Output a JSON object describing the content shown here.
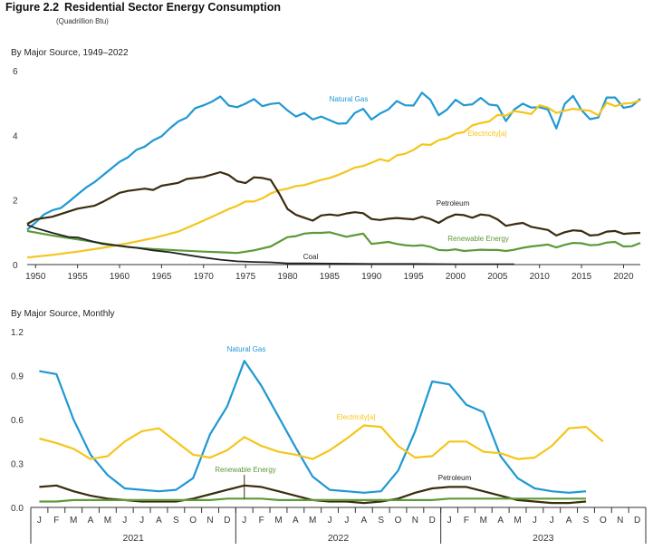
{
  "figure": {
    "number": "Figure 2.2",
    "title": "Residential Sector Energy Consumption",
    "subtitle": "(Quadrillion Btu)"
  },
  "colors": {
    "natural_gas": "#1f98d2",
    "electricity": "#f5c51b",
    "petroleum": "#3b2c0f",
    "renewable": "#5c9a37",
    "coal": "#222222",
    "axis": "#333333"
  },
  "chart_data": [
    {
      "type": "line",
      "title": "By Major Source, 1949–2022",
      "xlim": [
        1949,
        2022
      ],
      "ylim": [
        0,
        6
      ],
      "yticks": [
        0,
        2,
        4,
        6
      ],
      "xticks": [
        1950,
        1955,
        1960,
        1965,
        1970,
        1975,
        1980,
        1985,
        1990,
        1995,
        2000,
        2005,
        2010,
        2015,
        2020
      ],
      "series": [
        {
          "name": "Natural Gas",
          "x": [
            1949,
            1950,
            1951,
            1952,
            1953,
            1954,
            1955,
            1956,
            1957,
            1958,
            1959,
            1960,
            1961,
            1962,
            1963,
            1964,
            1965,
            1966,
            1967,
            1968,
            1969,
            1970,
            1971,
            1972,
            1973,
            1974,
            1975,
            1976,
            1977,
            1978,
            1979,
            1980,
            1981,
            1982,
            1983,
            1984,
            1985,
            1986,
            1987,
            1988,
            1989,
            1990,
            1991,
            1992,
            1993,
            1994,
            1995,
            1996,
            1997,
            1998,
            1999,
            2000,
            2001,
            2002,
            2003,
            2004,
            2005,
            2006,
            2007,
            2008,
            2009,
            2010,
            2011,
            2012,
            2013,
            2014,
            2015,
            2016,
            2017,
            2018,
            2019,
            2020,
            2021,
            2022
          ],
          "y": [
            1.08,
            1.3,
            1.55,
            1.68,
            1.75,
            1.95,
            2.17,
            2.38,
            2.55,
            2.76,
            2.97,
            3.18,
            3.32,
            3.55,
            3.65,
            3.84,
            3.97,
            4.22,
            4.43,
            4.55,
            4.84,
            4.93,
            5.04,
            5.2,
            4.92,
            4.87,
            4.98,
            5.12,
            4.9,
            4.97,
            5.0,
            4.77,
            4.58,
            4.69,
            4.49,
            4.58,
            4.47,
            4.36,
            4.37,
            4.69,
            4.82,
            4.49,
            4.67,
            4.8,
            5.06,
            4.93,
            4.92,
            5.32,
            5.1,
            4.62,
            4.8,
            5.1,
            4.93,
            4.96,
            5.16,
            4.95,
            4.92,
            4.44,
            4.8,
            4.98,
            4.86,
            4.87,
            4.8,
            4.21,
            4.97,
            5.22,
            4.78,
            4.5,
            4.55,
            5.17,
            5.17,
            4.85,
            4.9,
            5.13
          ]
        },
        {
          "name": "Electricity[a]",
          "x": [
            1949,
            1952,
            1955,
            1958,
            1961,
            1964,
            1967,
            1970,
            1973,
            1974,
            1975,
            1976,
            1977,
            1978,
            1979,
            1980,
            1981,
            1982,
            1983,
            1984,
            1985,
            1986,
            1987,
            1988,
            1989,
            1990,
            1991,
            1992,
            1993,
            1994,
            1995,
            1996,
            1997,
            1998,
            1999,
            2000,
            2001,
            2002,
            2003,
            2004,
            2005,
            2006,
            2007,
            2008,
            2009,
            2010,
            2011,
            2012,
            2013,
            2014,
            2015,
            2016,
            2017,
            2018,
            2019,
            2020,
            2021,
            2022
          ],
          "y": [
            0.22,
            0.3,
            0.4,
            0.52,
            0.66,
            0.82,
            1.02,
            1.36,
            1.72,
            1.82,
            1.95,
            1.95,
            2.05,
            2.2,
            2.3,
            2.35,
            2.43,
            2.46,
            2.54,
            2.62,
            2.68,
            2.77,
            2.88,
            3.0,
            3.05,
            3.15,
            3.26,
            3.2,
            3.38,
            3.43,
            3.55,
            3.72,
            3.7,
            3.85,
            3.91,
            4.05,
            4.1,
            4.31,
            4.38,
            4.43,
            4.63,
            4.61,
            4.75,
            4.71,
            4.66,
            4.93,
            4.86,
            4.69,
            4.76,
            4.82,
            4.79,
            4.76,
            4.62,
            5.01,
            4.9,
            4.98,
            5.0,
            5.08
          ]
        },
        {
          "name": "Petroleum",
          "x": [
            1949,
            1950,
            1952,
            1955,
            1957,
            1958,
            1960,
            1961,
            1963,
            1964,
            1965,
            1967,
            1968,
            1970,
            1972,
            1973,
            1974,
            1975,
            1976,
            1977,
            1978,
            1979,
            1980,
            1981,
            1982,
            1983,
            1984,
            1985,
            1986,
            1987,
            1988,
            1989,
            1990,
            1991,
            1992,
            1993,
            1994,
            1995,
            1996,
            1997,
            1998,
            1999,
            2000,
            2001,
            2002,
            2003,
            2004,
            2005,
            2006,
            2007,
            2008,
            2009,
            2010,
            2011,
            2012,
            2013,
            2014,
            2015,
            2016,
            2017,
            2018,
            2019,
            2020,
            2021,
            2022
          ],
          "y": [
            1.26,
            1.4,
            1.48,
            1.73,
            1.82,
            1.94,
            2.22,
            2.28,
            2.35,
            2.31,
            2.44,
            2.53,
            2.65,
            2.71,
            2.86,
            2.77,
            2.58,
            2.52,
            2.7,
            2.68,
            2.62,
            2.2,
            1.72,
            1.54,
            1.45,
            1.36,
            1.52,
            1.55,
            1.52,
            1.58,
            1.62,
            1.59,
            1.41,
            1.38,
            1.42,
            1.44,
            1.42,
            1.4,
            1.48,
            1.41,
            1.29,
            1.45,
            1.55,
            1.53,
            1.45,
            1.55,
            1.52,
            1.4,
            1.2,
            1.25,
            1.29,
            1.17,
            1.12,
            1.07,
            0.9,
            1.0,
            1.06,
            1.04,
            0.9,
            0.92,
            1.02,
            1.04,
            0.95,
            0.97,
            0.98
          ]
        },
        {
          "name": "Renewable Energy",
          "x": [
            1949,
            1952,
            1955,
            1958,
            1961,
            1964,
            1967,
            1970,
            1972,
            1974,
            1976,
            1978,
            1980,
            1981,
            1982,
            1983,
            1984,
            1985,
            1986,
            1987,
            1988,
            1989,
            1990,
            1991,
            1992,
            1993,
            1994,
            1995,
            1996,
            1997,
            1998,
            1999,
            2000,
            2001,
            2002,
            2003,
            2004,
            2005,
            2006,
            2007,
            2008,
            2009,
            2010,
            2011,
            2012,
            2013,
            2014,
            2015,
            2016,
            2017,
            2018,
            2019,
            2020,
            2021,
            2022
          ],
          "y": [
            1.04,
            0.9,
            0.78,
            0.66,
            0.54,
            0.48,
            0.44,
            0.4,
            0.38,
            0.36,
            0.44,
            0.56,
            0.85,
            0.88,
            0.96,
            0.98,
            0.98,
            1.0,
            0.93,
            0.86,
            0.91,
            0.96,
            0.64,
            0.67,
            0.7,
            0.64,
            0.6,
            0.58,
            0.6,
            0.55,
            0.45,
            0.44,
            0.47,
            0.42,
            0.44,
            0.46,
            0.45,
            0.45,
            0.42,
            0.46,
            0.52,
            0.56,
            0.59,
            0.62,
            0.53,
            0.61,
            0.67,
            0.66,
            0.6,
            0.61,
            0.68,
            0.7,
            0.56,
            0.57,
            0.67
          ]
        },
        {
          "name": "Coal",
          "x": [
            1949,
            1950,
            1952,
            1954,
            1955,
            1957,
            1958,
            1960,
            1962,
            1964,
            1966,
            1968,
            1970,
            1972,
            1974,
            1976,
            1978,
            1980,
            1982,
            1985,
            1990,
            1995,
            2000,
            2005,
            2007
          ],
          "y": [
            1.23,
            1.13,
            0.98,
            0.85,
            0.84,
            0.7,
            0.64,
            0.58,
            0.52,
            0.44,
            0.38,
            0.3,
            0.22,
            0.15,
            0.1,
            0.08,
            0.07,
            0.04,
            0.04,
            0.03,
            0.02,
            0.02,
            0.01,
            0.01,
            0.01
          ]
        }
      ]
    },
    {
      "type": "line",
      "title": "By Major Source, Monthly",
      "ylim": [
        0,
        1.2
      ],
      "yticks": [
        0.0,
        0.3,
        0.6,
        0.9,
        1.2
      ],
      "month_labels": [
        "J",
        "F",
        "M",
        "A",
        "M",
        "J",
        "J",
        "A",
        "S",
        "O",
        "N",
        "D",
        "J",
        "F",
        "M",
        "A",
        "M",
        "J",
        "J",
        "A",
        "S",
        "O",
        "N",
        "D",
        "J",
        "F",
        "M",
        "A",
        "M",
        "J",
        "J",
        "A",
        "S",
        "O",
        "N",
        "D"
      ],
      "years": [
        "2021",
        "2022",
        "2023"
      ],
      "series": [
        {
          "name": "Natural Gas",
          "y": [
            0.93,
            0.91,
            0.6,
            0.36,
            0.22,
            0.13,
            0.12,
            0.11,
            0.12,
            0.2,
            0.5,
            0.69,
            1.0,
            0.83,
            0.62,
            0.41,
            0.21,
            0.12,
            0.11,
            0.1,
            0.11,
            0.25,
            0.52,
            0.86,
            0.84,
            0.7,
            0.65,
            0.35,
            0.2,
            0.13,
            0.11,
            0.1,
            0.11
          ]
        },
        {
          "name": "Electricity[a]",
          "y": [
            0.47,
            0.44,
            0.4,
            0.33,
            0.35,
            0.45,
            0.52,
            0.54,
            0.45,
            0.36,
            0.34,
            0.39,
            0.48,
            0.42,
            0.38,
            0.36,
            0.33,
            0.39,
            0.47,
            0.56,
            0.55,
            0.42,
            0.34,
            0.35,
            0.45,
            0.45,
            0.38,
            0.37,
            0.33,
            0.34,
            0.42,
            0.54,
            0.55,
            0.45
          ]
        },
        {
          "name": "Petroleum",
          "y": [
            0.14,
            0.15,
            0.11,
            0.08,
            0.06,
            0.05,
            0.04,
            0.04,
            0.04,
            0.06,
            0.09,
            0.12,
            0.15,
            0.14,
            0.11,
            0.08,
            0.05,
            0.04,
            0.04,
            0.03,
            0.04,
            0.06,
            0.1,
            0.13,
            0.14,
            0.14,
            0.11,
            0.08,
            0.05,
            0.04,
            0.03,
            0.03,
            0.04
          ]
        },
        {
          "name": "Renewable Energy",
          "y": [
            0.04,
            0.04,
            0.05,
            0.05,
            0.05,
            0.05,
            0.05,
            0.05,
            0.05,
            0.05,
            0.05,
            0.06,
            0.06,
            0.06,
            0.05,
            0.05,
            0.05,
            0.05,
            0.05,
            0.05,
            0.05,
            0.05,
            0.05,
            0.05,
            0.06,
            0.06,
            0.06,
            0.06,
            0.06,
            0.06,
            0.06,
            0.06,
            0.06
          ]
        }
      ]
    }
  ]
}
